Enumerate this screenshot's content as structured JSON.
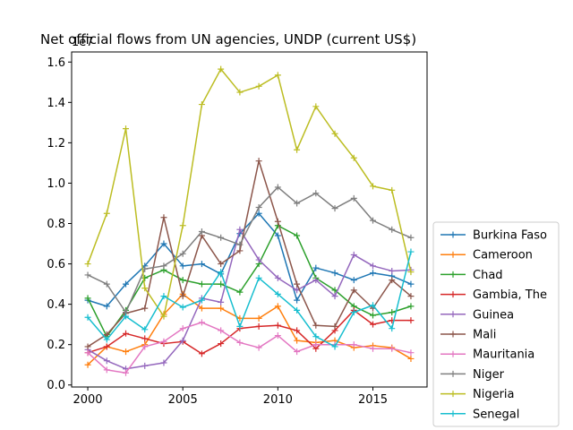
{
  "chart_data": {
    "type": "line",
    "title": "Net official flows from UN agencies, UNDP (current US$)",
    "offset_text": "1e7",
    "xlabel": "",
    "ylabel": "",
    "xlim": [
      1999.15,
      2017.85
    ],
    "ylim": [
      -0.01,
      1.65
    ],
    "x_ticks": [
      2000,
      2005,
      2010,
      2015
    ],
    "x_tick_labels": [
      "2000",
      "2005",
      "2010",
      "2015"
    ],
    "y_ticks": [
      0.0,
      0.2,
      0.4,
      0.6,
      0.8,
      1.0,
      1.2,
      1.4,
      1.6
    ],
    "y_tick_labels": [
      "0.0",
      "0.2",
      "0.4",
      "0.6",
      "0.8",
      "1.0",
      "1.2",
      "1.4",
      "1.6"
    ],
    "grid": false,
    "legend_placement": "right",
    "x": [
      2000,
      2001,
      2002,
      2003,
      2004,
      2005,
      2006,
      2007,
      2008,
      2009,
      2010,
      2011,
      2012,
      2013,
      2014,
      2015,
      2016,
      2017
    ],
    "series": [
      {
        "name": "Burkina Faso",
        "color": "#1f77b4",
        "values": [
          0.42,
          0.39,
          0.5,
          0.59,
          0.7,
          0.59,
          0.6,
          0.55,
          0.75,
          0.85,
          0.74,
          0.42,
          0.58,
          0.555,
          0.52,
          0.555,
          0.54,
          0.5
        ]
      },
      {
        "name": "Cameroon",
        "color": "#ff7f0e",
        "values": [
          0.1,
          0.19,
          0.165,
          0.2,
          0.35,
          0.45,
          0.38,
          0.38,
          0.33,
          0.33,
          0.39,
          0.22,
          0.21,
          0.22,
          0.185,
          0.195,
          0.185,
          0.13
        ]
      },
      {
        "name": "Chad",
        "color": "#2ca02c",
        "values": [
          0.43,
          0.24,
          0.37,
          0.53,
          0.57,
          0.52,
          0.5,
          0.5,
          0.46,
          0.6,
          0.79,
          0.74,
          0.53,
          0.47,
          0.39,
          0.345,
          0.36,
          0.39
        ]
      },
      {
        "name": "Gambia, The",
        "color": "#d62728",
        "values": [
          0.16,
          0.19,
          0.255,
          0.23,
          0.205,
          0.215,
          0.155,
          0.205,
          0.28,
          0.29,
          0.295,
          0.27,
          0.18,
          0.27,
          0.37,
          0.3,
          0.32,
          0.32
        ]
      },
      {
        "name": "Guinea",
        "color": "#9467bd",
        "values": [
          0.175,
          0.12,
          0.08,
          0.095,
          0.11,
          0.22,
          0.43,
          0.41,
          0.77,
          0.62,
          0.53,
          0.47,
          0.52,
          0.44,
          0.645,
          0.59,
          0.565,
          0.57
        ]
      },
      {
        "name": "Mali",
        "color": "#8c564b",
        "values": [
          0.19,
          0.25,
          0.355,
          0.38,
          0.83,
          0.44,
          0.74,
          0.6,
          0.665,
          1.11,
          0.81,
          0.5,
          0.295,
          0.29,
          0.47,
          0.38,
          0.52,
          0.44
        ]
      },
      {
        "name": "Mauritania",
        "color": "#e377c2",
        "values": [
          0.16,
          0.075,
          0.06,
          0.19,
          0.215,
          0.28,
          0.31,
          0.27,
          0.21,
          0.185,
          0.245,
          0.165,
          0.2,
          0.2,
          0.2,
          0.18,
          0.18,
          0.16
        ]
      },
      {
        "name": "Niger",
        "color": "#7f7f7f",
        "values": [
          0.545,
          0.5,
          0.36,
          0.575,
          0.59,
          0.65,
          0.76,
          0.73,
          0.695,
          0.88,
          0.98,
          0.9,
          0.95,
          0.875,
          0.925,
          0.815,
          0.77,
          0.73
        ]
      },
      {
        "name": "Nigeria",
        "color": "#bcbd22",
        "values": [
          0.6,
          0.85,
          1.27,
          0.48,
          0.34,
          0.79,
          1.39,
          1.565,
          1.45,
          1.48,
          1.535,
          1.165,
          1.38,
          1.245,
          1.125,
          0.985,
          0.965,
          0.56
        ]
      },
      {
        "name": "Senegal",
        "color": "#17becf",
        "values": [
          0.335,
          0.225,
          0.34,
          0.275,
          0.44,
          0.385,
          0.42,
          0.56,
          0.29,
          0.53,
          0.45,
          0.37,
          0.24,
          0.19,
          0.36,
          0.395,
          0.28,
          0.66
        ]
      }
    ]
  }
}
